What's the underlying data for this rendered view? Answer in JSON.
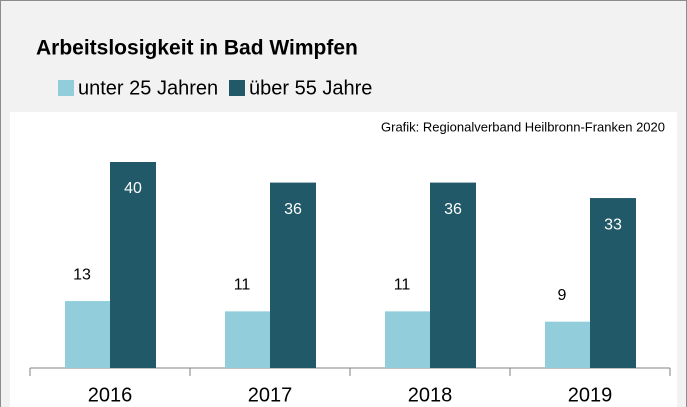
{
  "chart_data": {
    "type": "bar",
    "title": "Arbeitslosigkeit in Bad Wimpfen",
    "source": "Grafik: Regionalverband Heilbronn-Franken 2020",
    "categories": [
      "2016",
      "2017",
      "2018",
      "2019"
    ],
    "series": [
      {
        "name": "unter 25 Jahren",
        "color": "#92cddc",
        "values": [
          13,
          11,
          11,
          9
        ]
      },
      {
        "name": "über 55 Jahre",
        "color": "#215968",
        "values": [
          40,
          36,
          36,
          33
        ]
      }
    ]
  }
}
